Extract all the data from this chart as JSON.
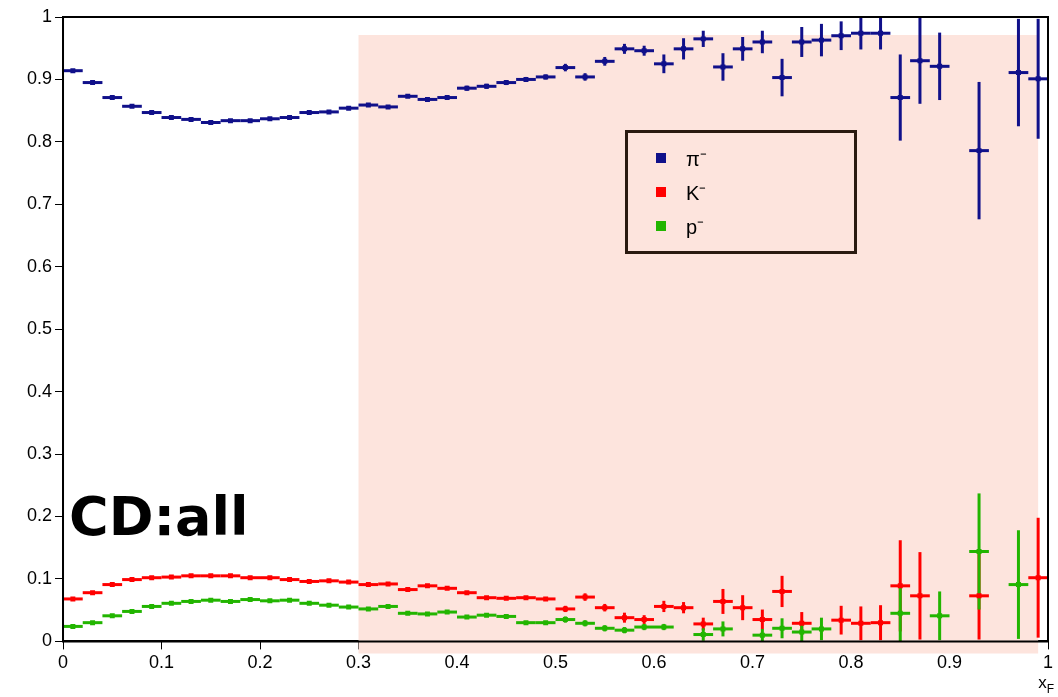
{
  "chart_data": {
    "type": "scatter",
    "xlabel": "x$_{F}$",
    "annotations": [
      "CD:all"
    ],
    "x": [
      0.01,
      0.03,
      0.05,
      0.07,
      0.09,
      0.11,
      0.13,
      0.15,
      0.17,
      0.19,
      0.21,
      0.23,
      0.25,
      0.27,
      0.29,
      0.31,
      0.33,
      0.35,
      0.37,
      0.39,
      0.41,
      0.43,
      0.45,
      0.47,
      0.49,
      0.51,
      0.53,
      0.55,
      0.57,
      0.59,
      0.61,
      0.63,
      0.65,
      0.67,
      0.69,
      0.71,
      0.73,
      0.75,
      0.77,
      0.79,
      0.81,
      0.83,
      0.85,
      0.87,
      0.89,
      0.91,
      0.93,
      0.95,
      0.97,
      0.99
    ],
    "series": [
      {
        "name": "π⁻",
        "color": "#10108a",
        "values": [
          0.914,
          0.895,
          0.871,
          0.857,
          0.847,
          0.839,
          0.836,
          0.831,
          0.834,
          0.834,
          0.837,
          0.839,
          0.847,
          0.848,
          0.854,
          0.859,
          0.856,
          0.873,
          0.868,
          0.871,
          0.886,
          0.889,
          0.895,
          0.9,
          0.904,
          0.919,
          0.904,
          0.929,
          0.949,
          0.946,
          0.925,
          0.949,
          0.965,
          0.92,
          0.949,
          0.96,
          0.903,
          0.96,
          0.963,
          0.97,
          0.974,
          0.974,
          0.871,
          0.93,
          0.921,
          null,
          0.786,
          null,
          0.911,
          0.901
        ],
        "errors": [
          null,
          null,
          null,
          null,
          null,
          null,
          null,
          null,
          null,
          null,
          null,
          null,
          null,
          null,
          null,
          null,
          null,
          null,
          null,
          null,
          0.004,
          0.004,
          0.004,
          0.004,
          0.004,
          0.006,
          0.006,
          0.007,
          0.008,
          0.008,
          0.015,
          0.017,
          0.013,
          0.022,
          0.019,
          0.018,
          0.03,
          0.024,
          0.026,
          0.023,
          0.026,
          0.026,
          0.069,
          0.069,
          0.054,
          null,
          0.11,
          null,
          0.086,
          0.096
        ],
        "xerrors": [
          0.01,
          0.01,
          0.01,
          0.01,
          0.01,
          0.01,
          0.01,
          0.01,
          0.01,
          0.01,
          0.01,
          0.01,
          0.01,
          0.01,
          0.01,
          0.01,
          0.01,
          0.01,
          0.01,
          0.01,
          0.01,
          0.01,
          0.01,
          0.01,
          0.01,
          0.01,
          0.01,
          0.01,
          0.01,
          0.01,
          0.01,
          0.01,
          0.01,
          0.01,
          0.01,
          0.01,
          0.01,
          0.01,
          0.01,
          0.01,
          0.01,
          0.01,
          0.01,
          0.01,
          0.01,
          null,
          0.01,
          null,
          0.01,
          0.01
        ]
      },
      {
        "name": "K⁻",
        "color": "#ff0000",
        "values": [
          0.068,
          0.078,
          0.091,
          0.099,
          0.102,
          0.103,
          0.105,
          0.105,
          0.105,
          0.102,
          0.102,
          0.099,
          0.096,
          0.097,
          0.095,
          0.091,
          0.092,
          0.083,
          0.089,
          0.085,
          0.078,
          0.07,
          0.069,
          0.07,
          0.068,
          0.052,
          0.071,
          0.054,
          0.038,
          0.035,
          0.056,
          0.054,
          0.028,
          0.064,
          0.054,
          0.035,
          0.08,
          0.029,
          null,
          0.034,
          0.029,
          0.03,
          0.089,
          0.073,
          null,
          null,
          0.073,
          null,
          null,
          0.102
        ],
        "errors": [
          null,
          null,
          null,
          null,
          null,
          null,
          null,
          null,
          null,
          null,
          null,
          null,
          null,
          null,
          null,
          null,
          null,
          null,
          null,
          null,
          null,
          null,
          null,
          null,
          null,
          0.005,
          0.006,
          0.006,
          0.008,
          0.007,
          0.009,
          0.009,
          0.01,
          0.02,
          0.02,
          0.016,
          0.025,
          0.018,
          null,
          0.023,
          0.027,
          0.028,
          0.073,
          0.07,
          null,
          null,
          0.07,
          null,
          null,
          0.096
        ],
        "xerrors": [
          0.01,
          0.01,
          0.01,
          0.01,
          0.01,
          0.01,
          0.01,
          0.01,
          0.01,
          0.01,
          0.01,
          0.01,
          0.01,
          0.01,
          0.01,
          0.01,
          0.01,
          0.01,
          0.01,
          0.01,
          0.01,
          0.01,
          0.01,
          0.01,
          0.01,
          0.01,
          0.01,
          0.01,
          0.01,
          0.01,
          0.01,
          0.01,
          0.01,
          0.01,
          0.01,
          0.01,
          0.01,
          0.01,
          null,
          0.01,
          0.01,
          0.01,
          0.01,
          0.01,
          null,
          null,
          0.01,
          null,
          null,
          0.01
        ]
      },
      {
        "name": "p⁻",
        "color": "#22b500",
        "values": [
          0.024,
          0.03,
          0.041,
          0.048,
          0.056,
          0.061,
          0.064,
          0.066,
          0.064,
          0.067,
          0.065,
          0.066,
          0.061,
          0.058,
          0.055,
          0.052,
          0.056,
          0.045,
          0.044,
          0.047,
          0.039,
          0.042,
          0.04,
          0.03,
          0.03,
          0.035,
          0.029,
          0.021,
          0.018,
          0.023,
          0.023,
          null,
          0.011,
          0.02,
          null,
          0.01,
          0.021,
          0.015,
          0.02,
          null,
          null,
          null,
          0.045,
          null,
          0.041,
          null,
          0.144,
          null,
          0.091,
          null
        ],
        "errors": [
          null,
          null,
          null,
          null,
          null,
          null,
          null,
          null,
          null,
          null,
          null,
          null,
          null,
          null,
          null,
          null,
          null,
          null,
          null,
          null,
          null,
          null,
          null,
          null,
          null,
          0.005,
          0.005,
          0.005,
          0.005,
          0.005,
          0.005,
          null,
          0.01,
          0.012,
          null,
          0.01,
          0.016,
          0.015,
          0.018,
          null,
          null,
          null,
          0.045,
          null,
          0.039,
          null,
          0.093,
          null,
          0.087,
          null
        ],
        "xerrors": [
          0.01,
          0.01,
          0.01,
          0.01,
          0.01,
          0.01,
          0.01,
          0.01,
          0.01,
          0.01,
          0.01,
          0.01,
          0.01,
          0.01,
          0.01,
          0.01,
          0.01,
          0.01,
          0.01,
          0.01,
          0.01,
          0.01,
          0.01,
          0.01,
          0.01,
          0.01,
          0.01,
          0.01,
          0.01,
          0.01,
          0.01,
          null,
          0.01,
          0.01,
          null,
          0.01,
          0.01,
          0.01,
          0.01,
          null,
          null,
          null,
          0.01,
          null,
          0.01,
          null,
          0.01,
          null,
          0.01,
          null
        ]
      }
    ],
    "bands": [
      {
        "axis": "x",
        "from": 0.3,
        "to": 0.99,
        "color": "#fde4dd"
      }
    ],
    "xlim": [
      0,
      1
    ],
    "xticks": [
      0,
      0.1,
      0.2,
      0.3,
      0.4,
      0.5,
      0.6,
      0.7,
      0.8,
      0.9,
      1
    ],
    "ylim": [
      0,
      1
    ],
    "yticks": [
      0,
      0.1,
      0.2,
      0.3,
      0.4,
      0.5,
      0.6,
      0.7,
      0.8,
      0.9,
      1
    ],
    "grid": false,
    "legend": "top right",
    "marker": "square"
  }
}
